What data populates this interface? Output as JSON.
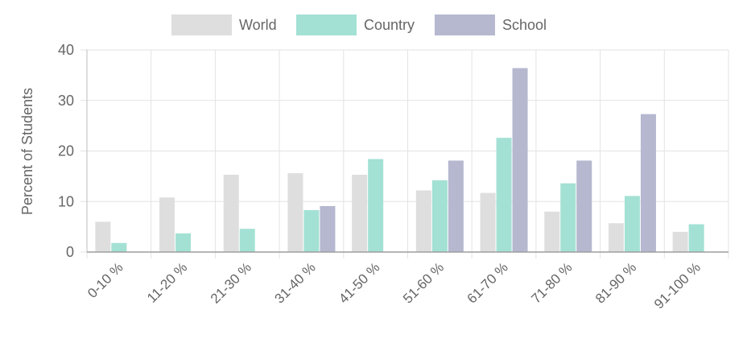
{
  "chart_data": {
    "type": "bar",
    "title": "",
    "xlabel": "",
    "ylabel": "Percent of Students",
    "ylim": [
      0,
      40
    ],
    "yticks": [
      0,
      10,
      20,
      30,
      40
    ],
    "grid": true,
    "legend_position": "top",
    "categories": [
      "0-10 %",
      "11-20 %",
      "21-30 %",
      "31-40 %",
      "41-50 %",
      "51-60 %",
      "61-70 %",
      "71-80 %",
      "81-90 %",
      "91-100 %"
    ],
    "series": [
      {
        "name": "World",
        "color": "#dedede",
        "values": [
          6.0,
          10.8,
          15.3,
          15.6,
          15.3,
          12.2,
          11.7,
          8.0,
          5.7,
          4.0
        ]
      },
      {
        "name": "Country",
        "color": "#a3e1d4",
        "values": [
          1.8,
          3.7,
          4.6,
          8.3,
          18.4,
          14.2,
          22.6,
          13.6,
          11.1,
          5.5
        ]
      },
      {
        "name": "School",
        "color": "#b5b8cf",
        "values": [
          0,
          0,
          0,
          9.1,
          0,
          18.1,
          36.4,
          18.1,
          27.3,
          0
        ]
      }
    ]
  }
}
